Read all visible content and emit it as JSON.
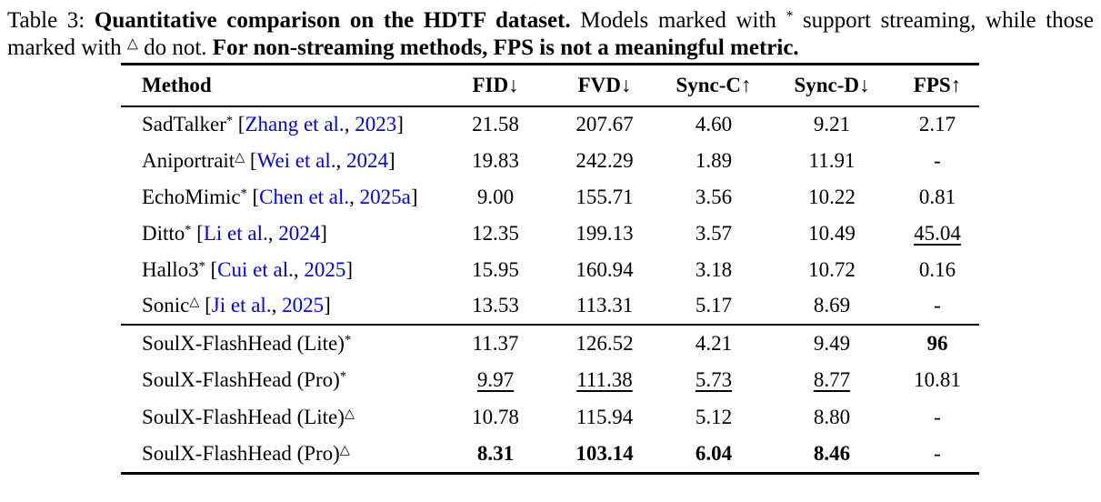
{
  "page": {
    "background_color": "#ffffff",
    "text_color": "#000000",
    "link_color": "#0000EE"
  },
  "caption": {
    "lines": [
      [
        {
          "t": "Table 3: "
        },
        {
          "t": "Quantitative comparison on the HDTF dataset.",
          "b": true
        },
        {
          "t": " Models marked with "
        },
        {
          "t": "*",
          "sup": true
        },
        {
          "t": " support streaming, while those"
        }
      ],
      [
        {
          "t": "marked with "
        },
        {
          "t": "△",
          "sup": true
        },
        {
          "t": " do not. "
        },
        {
          "t": "For non-streaming methods, FPS is not a meaningful metric.",
          "b": true
        }
      ]
    ]
  },
  "table": {
    "headers": [
      "Method",
      "FID↓",
      "FVD↓",
      "Sync-C↑",
      "Sync-D↓",
      "FPS↑"
    ],
    "cite_format": {
      "open": " [",
      "sep": ", ",
      "close": "]"
    },
    "groups": [
      {
        "rows": [
          {
            "method": "SadTalker",
            "marker": "*",
            "cite": {
              "authors": "Zhang et al.",
              "year": "2023"
            },
            "cells": [
              {
                "v": "21.58"
              },
              {
                "v": "207.67"
              },
              {
                "v": "4.60"
              },
              {
                "v": "9.21"
              },
              {
                "v": "2.17"
              }
            ]
          },
          {
            "method": "Aniportrait",
            "marker": "△",
            "cite": {
              "authors": "Wei et al.",
              "year": "2024"
            },
            "cells": [
              {
                "v": "19.83"
              },
              {
                "v": "242.29"
              },
              {
                "v": "1.89"
              },
              {
                "v": "11.91"
              },
              {
                "v": "-"
              }
            ]
          },
          {
            "method": "EchoMimic",
            "marker": "*",
            "cite": {
              "authors": "Chen et al.",
              "year": "2025a"
            },
            "cells": [
              {
                "v": "9.00"
              },
              {
                "v": "155.71"
              },
              {
                "v": "3.56"
              },
              {
                "v": "10.22"
              },
              {
                "v": "0.81"
              }
            ]
          },
          {
            "method": "Ditto",
            "marker": "*",
            "cite": {
              "authors": "Li et al.",
              "year": "2024"
            },
            "cells": [
              {
                "v": "12.35"
              },
              {
                "v": "199.13"
              },
              {
                "v": "3.57"
              },
              {
                "v": "10.49"
              },
              {
                "v": "45.04",
                "s": "u"
              }
            ]
          },
          {
            "method": "Hallo3",
            "marker": "*",
            "cite": {
              "authors": "Cui et al.",
              "year": "2025"
            },
            "cells": [
              {
                "v": "15.95"
              },
              {
                "v": "160.94"
              },
              {
                "v": "3.18"
              },
              {
                "v": "10.72"
              },
              {
                "v": "0.16"
              }
            ]
          },
          {
            "method": "Sonic",
            "marker": "△",
            "cite": {
              "authors": "Ji et al.",
              "year": "2025"
            },
            "cells": [
              {
                "v": "13.53"
              },
              {
                "v": "113.31"
              },
              {
                "v": "5.17"
              },
              {
                "v": "8.69"
              },
              {
                "v": "-"
              }
            ]
          }
        ]
      },
      {
        "rows": [
          {
            "method": "SoulX-FlashHead (Lite)",
            "marker": "*",
            "cells": [
              {
                "v": "11.37"
              },
              {
                "v": "126.52"
              },
              {
                "v": "4.21"
              },
              {
                "v": "9.49"
              },
              {
                "v": "96",
                "s": "b"
              }
            ]
          },
          {
            "method": "SoulX-FlashHead (Pro)",
            "marker": "*",
            "cells": [
              {
                "v": "9.97",
                "s": "u"
              },
              {
                "v": "111.38",
                "s": "u"
              },
              {
                "v": "5.73",
                "s": "u"
              },
              {
                "v": "8.77",
                "s": "u"
              },
              {
                "v": "10.81"
              }
            ]
          },
          {
            "method": "SoulX-FlashHead (Lite)",
            "marker": "△",
            "cells": [
              {
                "v": "10.78"
              },
              {
                "v": "115.94"
              },
              {
                "v": "5.12"
              },
              {
                "v": "8.80"
              },
              {
                "v": "-"
              }
            ]
          },
          {
            "method": "SoulX-FlashHead (Pro)",
            "marker": "△",
            "cells": [
              {
                "v": "8.31",
                "s": "b"
              },
              {
                "v": "103.14",
                "s": "b"
              },
              {
                "v": "6.04",
                "s": "b"
              },
              {
                "v": "8.46",
                "s": "b"
              },
              {
                "v": "-"
              }
            ]
          }
        ]
      }
    ]
  }
}
